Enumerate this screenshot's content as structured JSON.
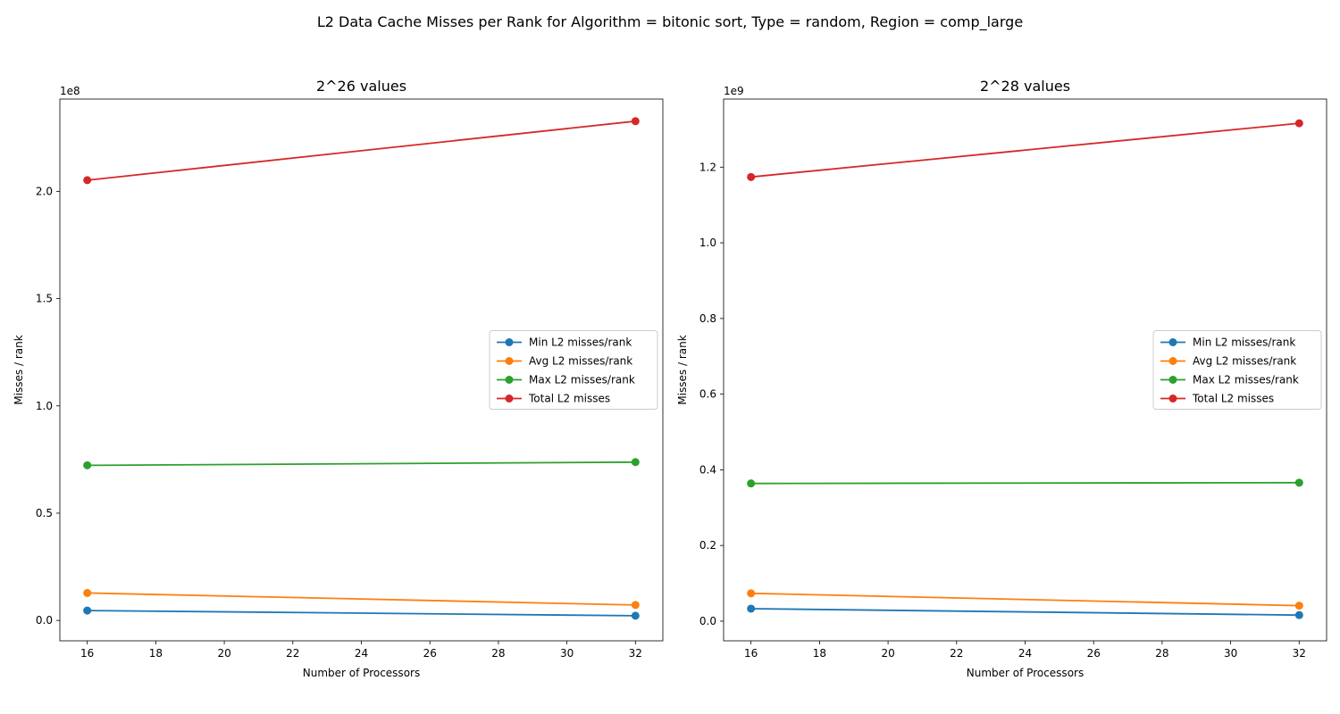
{
  "suptitle": "L2 Data Cache Misses per Rank for Algorithm = bitonic sort, Type = random, Region = comp_large",
  "chart_data": [
    {
      "type": "line",
      "title": "2^26 values",
      "xlabel": "Number of Processors",
      "ylabel": "Misses / rank",
      "offset_text": "1e8",
      "scale": 100000000,
      "xlim": [
        15.2,
        32.8
      ],
      "ylim": [
        -9500000,
        243000000
      ],
      "xticks": [
        16,
        18,
        20,
        22,
        24,
        26,
        28,
        30,
        32
      ],
      "yticks": [
        0,
        50000000,
        100000000,
        150000000,
        200000000
      ],
      "ytick_labels": [
        "0.0",
        "0.5",
        "1.0",
        "1.5",
        "2.0"
      ],
      "x": [
        16,
        32
      ],
      "legend_position": "center-right",
      "grid": false,
      "series": [
        {
          "name": "Min L2 misses/rank",
          "color": "#1f77b4",
          "values": [
            4600000,
            2200000
          ]
        },
        {
          "name": "Avg L2 misses/rank",
          "color": "#ff7f0e",
          "values": [
            12800000,
            7200000
          ]
        },
        {
          "name": "Max L2 misses/rank",
          "color": "#2ca02c",
          "values": [
            72300000,
            73800000
          ]
        },
        {
          "name": "Total L2 misses",
          "color": "#d62728",
          "values": [
            205200000,
            232700000
          ]
        }
      ]
    },
    {
      "type": "line",
      "title": "2^28 values",
      "xlabel": "Number of Processors",
      "ylabel": "Misses / rank",
      "offset_text": "1e9",
      "scale": 1000000000,
      "xlim": [
        15.2,
        32.8
      ],
      "ylim": [
        -52000000,
        1380000000
      ],
      "xticks": [
        16,
        18,
        20,
        22,
        24,
        26,
        28,
        30,
        32
      ],
      "yticks": [
        0,
        200000000,
        400000000,
        600000000,
        800000000,
        1000000000,
        1200000000
      ],
      "ytick_labels": [
        "0.0",
        "0.2",
        "0.4",
        "0.6",
        "0.8",
        "1.0",
        "1.2"
      ],
      "x": [
        16,
        32
      ],
      "legend_position": "center-right",
      "grid": false,
      "series": [
        {
          "name": "Min L2 misses/rank",
          "color": "#1f77b4",
          "values": [
            33000000,
            16000000
          ]
        },
        {
          "name": "Avg L2 misses/rank",
          "color": "#ff7f0e",
          "values": [
            73500000,
            41000000
          ]
        },
        {
          "name": "Max L2 misses/rank",
          "color": "#2ca02c",
          "values": [
            364000000,
            366000000
          ]
        },
        {
          "name": "Total L2 misses",
          "color": "#d62728",
          "values": [
            1174000000,
            1316000000
          ]
        }
      ]
    }
  ]
}
